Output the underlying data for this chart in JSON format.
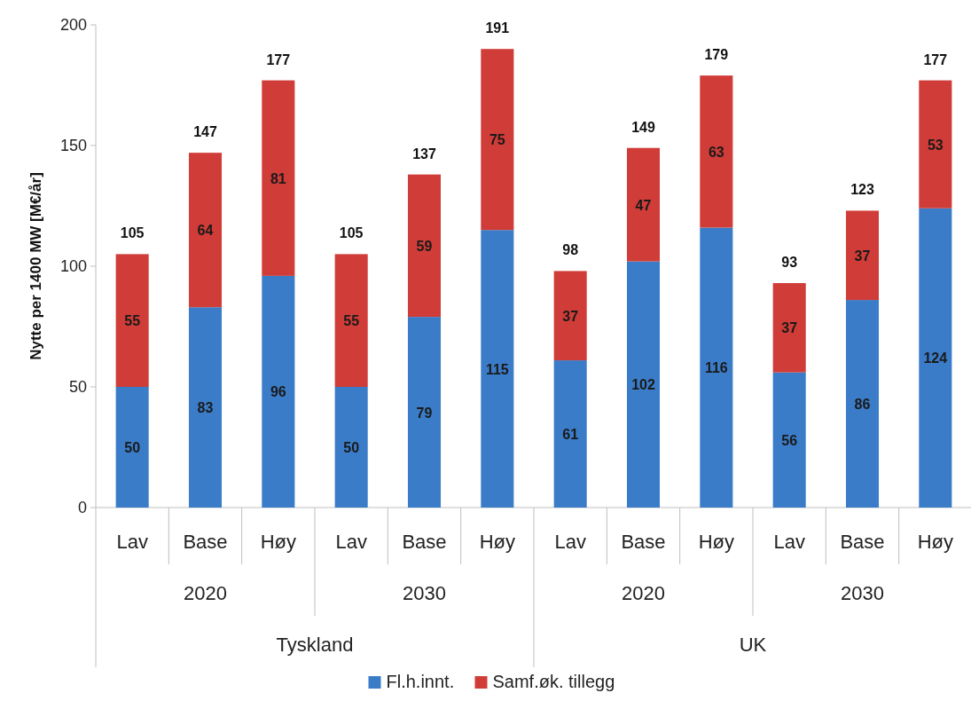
{
  "chart_data": {
    "type": "bar",
    "stacked": true,
    "ylabel": "Nytte per 1400 MW [M€/år]",
    "categories": [
      "Lav",
      "Base",
      "Høy",
      "Lav",
      "Base",
      "Høy",
      "Lav",
      "Base",
      "Høy",
      "Lav",
      "Base",
      "Høy"
    ],
    "series": [
      {
        "name": "Fl.h.innt.",
        "color": "#3a7cc8",
        "values": [
          50,
          83,
          96,
          50,
          79,
          115,
          61,
          102,
          116,
          56,
          86,
          124
        ]
      },
      {
        "name": "Samf.øk. tillegg",
        "color": "#d03c37",
        "values": [
          55,
          64,
          81,
          55,
          59,
          75,
          37,
          47,
          63,
          37,
          37,
          53
        ]
      }
    ],
    "totals": [
      "105",
      "147",
      "177",
      "105",
      "137",
      "191",
      "98",
      "149",
      "179",
      "93",
      "123",
      "177"
    ],
    "data_labels": true,
    "ylim": [
      0,
      200
    ],
    "yticks": [
      0,
      50,
      100,
      150,
      200
    ],
    "grid": false,
    "legend": "bottom",
    "annotations": [
      "2020",
      "2030",
      "2020",
      "2030",
      "Tyskland",
      "UK"
    ]
  }
}
